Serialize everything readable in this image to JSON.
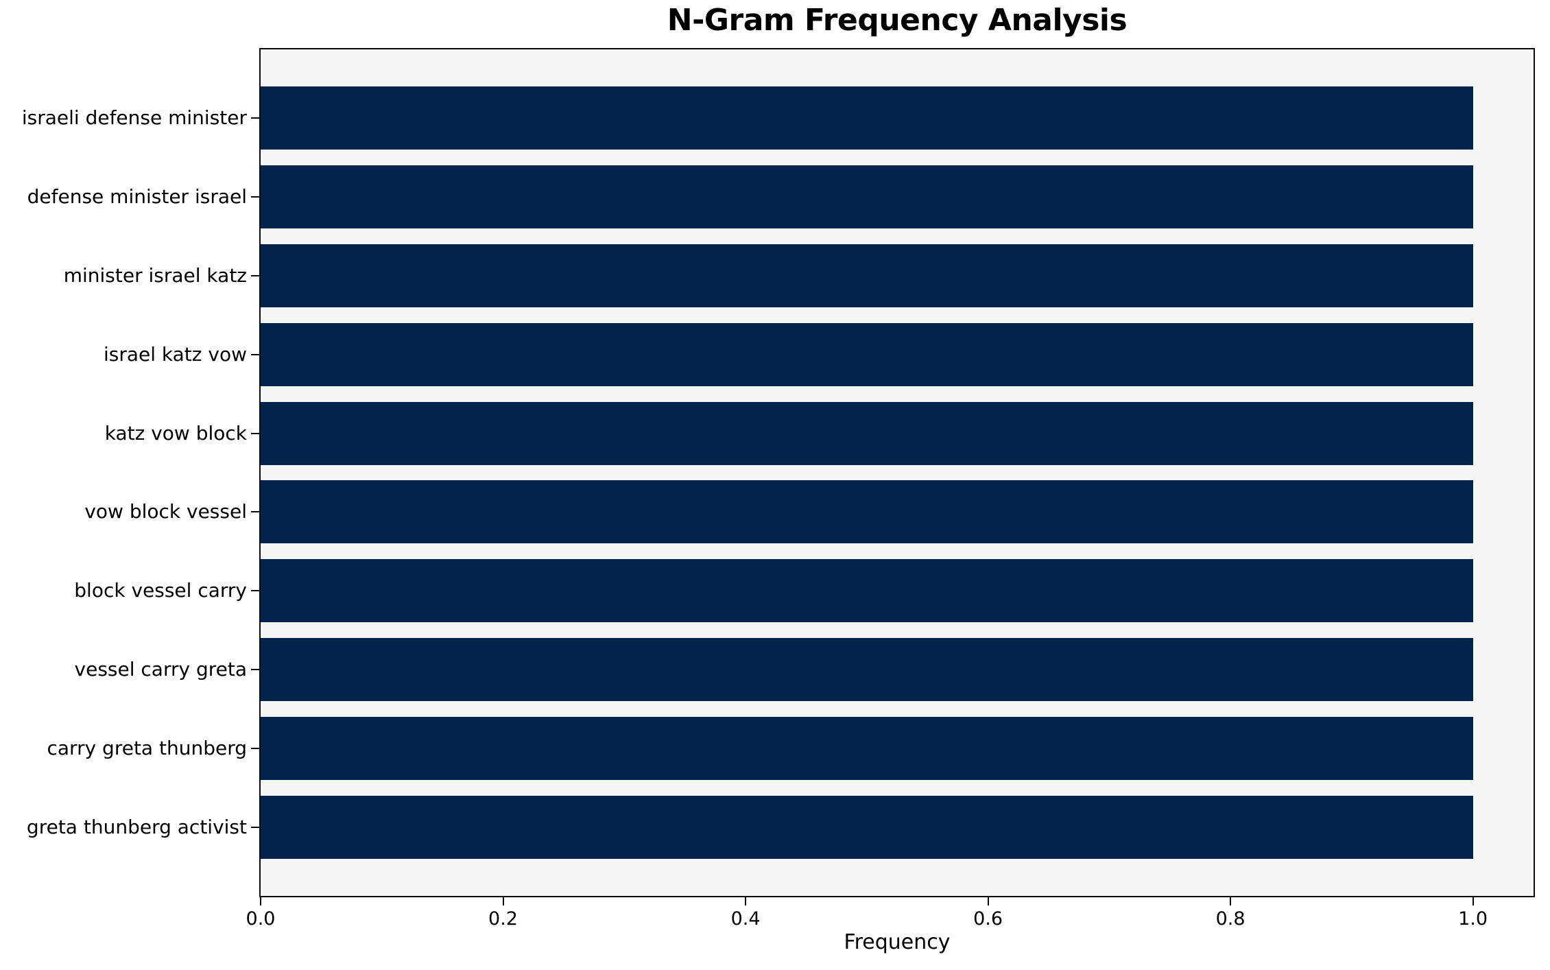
{
  "chart_data": {
    "type": "bar",
    "orientation": "horizontal",
    "title": "N-Gram Frequency Analysis",
    "xlabel": "Frequency",
    "ylabel": "",
    "categories": [
      "israeli defense minister",
      "defense minister israel",
      "minister israel katz",
      "israel katz vow",
      "katz vow block",
      "vow block vessel",
      "block vessel carry",
      "vessel carry greta",
      "carry greta thunberg",
      "greta thunberg activist"
    ],
    "values": [
      1.0,
      1.0,
      1.0,
      1.0,
      1.0,
      1.0,
      1.0,
      1.0,
      1.0,
      1.0
    ],
    "xlim": [
      0.0,
      1.05
    ],
    "x_ticks": [
      "0.0",
      "0.2",
      "0.4",
      "0.6",
      "0.8",
      "1.0"
    ],
    "x_tick_values": [
      0.0,
      0.2,
      0.4,
      0.6,
      0.8,
      1.0
    ],
    "bar_height_ratio": 0.8,
    "grid": false,
    "legend": null,
    "colors": {
      "bar": "#02234c",
      "plot_bg": "#f5f5f6",
      "figure_bg": "#ffffff",
      "axis": "#0a0a0a",
      "text": "#000000"
    }
  }
}
